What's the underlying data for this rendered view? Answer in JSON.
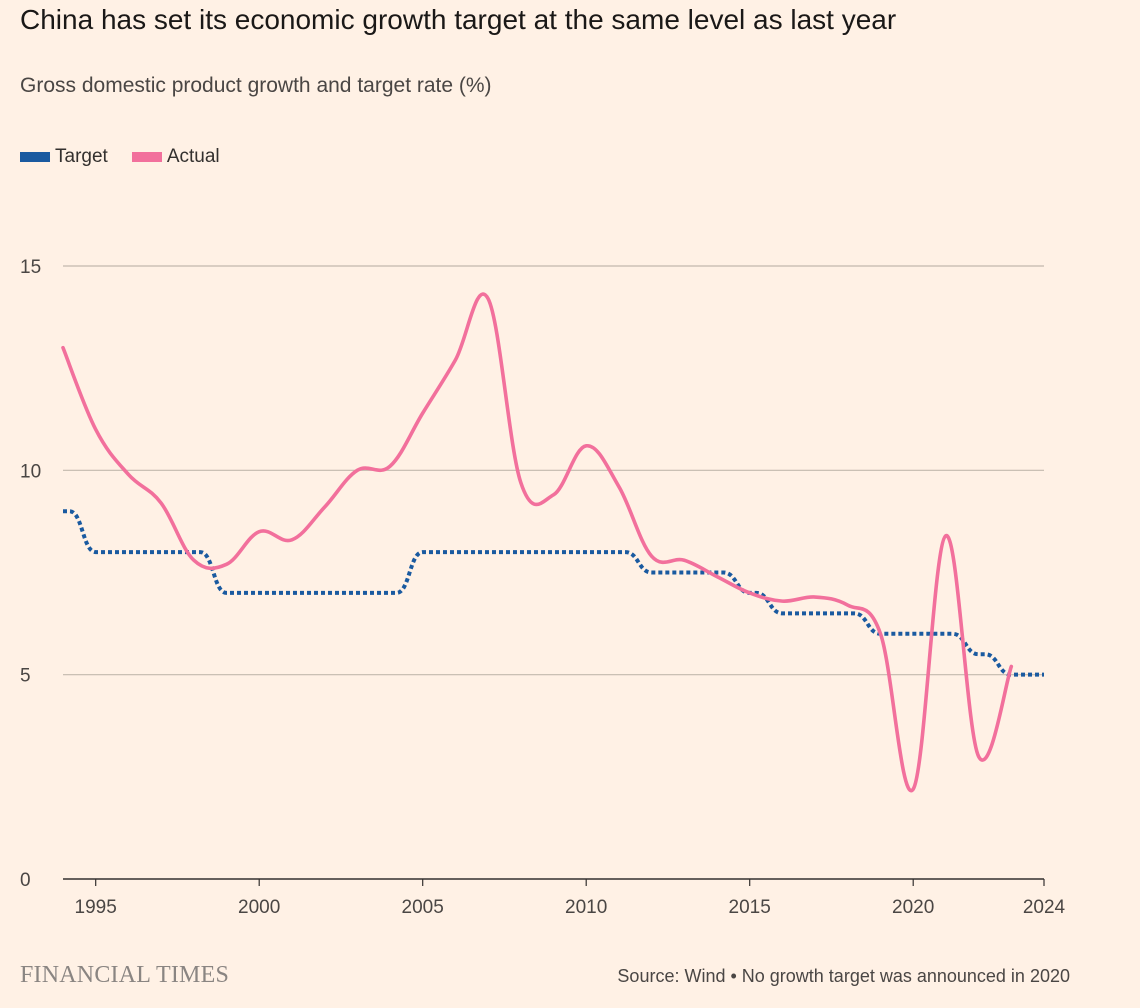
{
  "chart_data": {
    "type": "line",
    "title": "China has set its economic growth target at the same level as last year",
    "subtitle": "Gross domestic product growth and target rate (%)",
    "xlabel": "",
    "ylabel": "",
    "xlim": [
      1994,
      2024
    ],
    "ylim": [
      0,
      15
    ],
    "x_ticks": [
      1995,
      2000,
      2005,
      2010,
      2015,
      2020,
      2024
    ],
    "y_ticks": [
      0,
      5,
      10,
      15
    ],
    "grid": "horizontal",
    "legend_position": "top-left",
    "series": [
      {
        "name": "Target",
        "color": "#1a5aa0",
        "style": "dotted",
        "points": [
          [
            1994,
            9
          ],
          [
            1995,
            8
          ],
          [
            1996,
            8
          ],
          [
            1997,
            8
          ],
          [
            1998,
            8
          ],
          [
            1999,
            7
          ],
          [
            2000,
            7
          ],
          [
            2001,
            7
          ],
          [
            2002,
            7
          ],
          [
            2003,
            7
          ],
          [
            2004,
            7
          ],
          [
            2005,
            8
          ],
          [
            2006,
            8
          ],
          [
            2007,
            8
          ],
          [
            2008,
            8
          ],
          [
            2009,
            8
          ],
          [
            2010,
            8
          ],
          [
            2011,
            8
          ],
          [
            2012,
            7.5
          ],
          [
            2013,
            7.5
          ],
          [
            2014,
            7.5
          ],
          [
            2015,
            7
          ],
          [
            2016,
            6.5
          ],
          [
            2017,
            6.5
          ],
          [
            2018,
            6.5
          ],
          [
            2019,
            6
          ],
          [
            2021,
            6
          ],
          [
            2022,
            5.5
          ],
          [
            2023,
            5
          ],
          [
            2024,
            5
          ]
        ]
      },
      {
        "name": "Actual",
        "color": "#f2709c",
        "style": "solid",
        "points": [
          [
            1994,
            13
          ],
          [
            1995,
            11
          ],
          [
            1996,
            9.9
          ],
          [
            1997,
            9.2
          ],
          [
            1998,
            7.8
          ],
          [
            1999,
            7.7
          ],
          [
            2000,
            8.5
          ],
          [
            2001,
            8.3
          ],
          [
            2002,
            9.1
          ],
          [
            2003,
            10
          ],
          [
            2004,
            10.1
          ],
          [
            2005,
            11.4
          ],
          [
            2006,
            12.7
          ],
          [
            2007,
            14.2
          ],
          [
            2008,
            9.7
          ],
          [
            2009,
            9.4
          ],
          [
            2010,
            10.6
          ],
          [
            2011,
            9.6
          ],
          [
            2012,
            7.9
          ],
          [
            2013,
            7.8
          ],
          [
            2014,
            7.4
          ],
          [
            2015,
            7
          ],
          [
            2016,
            6.8
          ],
          [
            2017,
            6.9
          ],
          [
            2018,
            6.7
          ],
          [
            2019,
            6
          ],
          [
            2020,
            2.2
          ],
          [
            2021,
            8.4
          ],
          [
            2022,
            3
          ],
          [
            2023,
            5.2
          ]
        ]
      }
    ],
    "source": "Source: Wind • No growth target was announced in 2020"
  },
  "legend": {
    "target_label": "Target",
    "actual_label": "Actual"
  },
  "brand": "FINANCIAL TIMES"
}
